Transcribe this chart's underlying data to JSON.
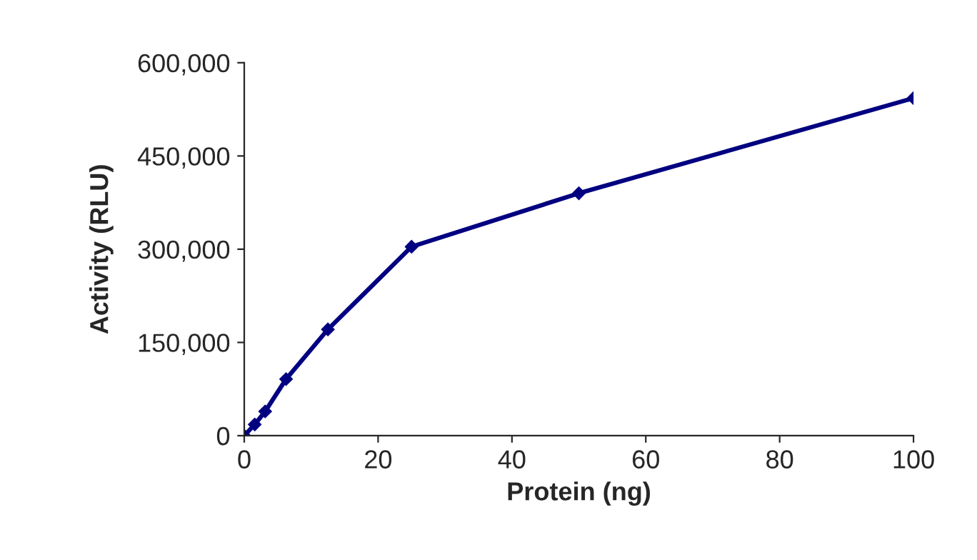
{
  "chart_data": {
    "type": "line",
    "xlabel": "Protein (ng)",
    "ylabel": "Activity (RLU)",
    "x": [
      0,
      1.5625,
      3.125,
      6.25,
      12.5,
      25,
      50,
      100
    ],
    "series": [
      {
        "color": "#000080",
        "values": [
          0,
          18000,
          39000,
          91000,
          171000,
          304000,
          390000,
          543000
        ]
      }
    ],
    "xlim": [
      0,
      100
    ],
    "xticks": [
      0,
      20,
      40,
      60,
      80,
      100
    ],
    "ylim": [
      0,
      600000
    ],
    "yticks": [
      {
        "value": 0,
        "label": "0"
      },
      {
        "value": 150000,
        "label": "150,000"
      },
      {
        "value": 300000,
        "label": "300,000"
      },
      {
        "value": 450000,
        "label": "450,000"
      },
      {
        "value": 600000,
        "label": "600,000"
      }
    ],
    "grid": false,
    "marker": "diamond",
    "line_style": "solid"
  }
}
